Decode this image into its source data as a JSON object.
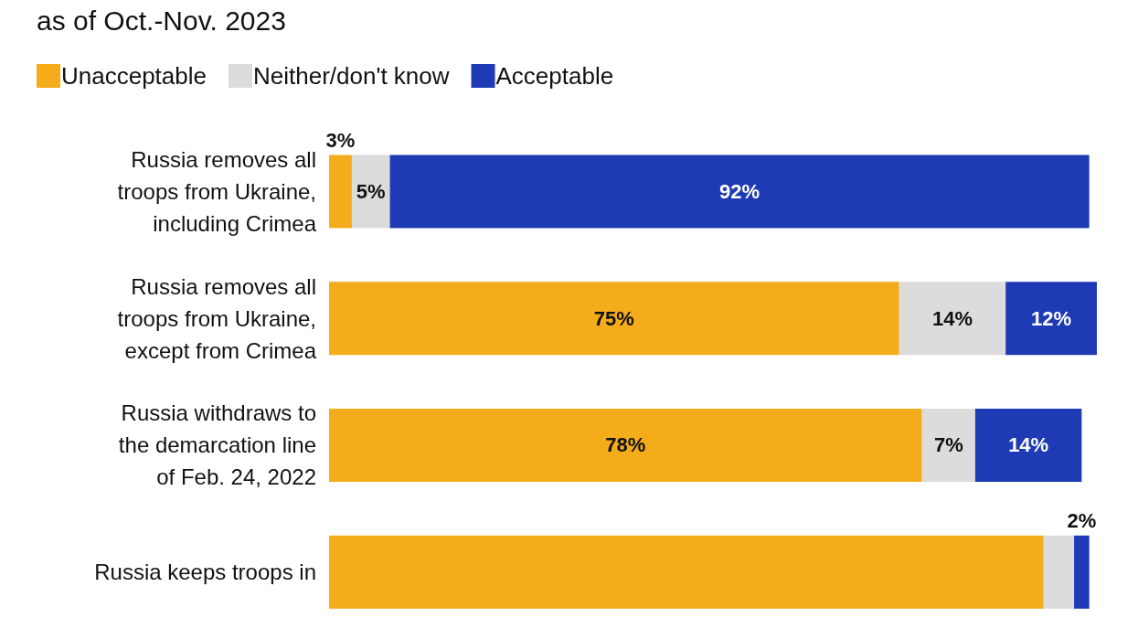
{
  "chart_data": {
    "type": "bar",
    "orientation": "horizontal",
    "stacked": true,
    "title": "as of Oct.-Nov. 2023",
    "legend": "top left",
    "categories": [
      "Russia removes all troops from Ukraine, including Crimea",
      "Russia removes all troops from Ukraine, except from Crimea",
      "Russia withdraws to the demarcation line of Feb. 24, 2022",
      "Russia keeps troops in"
    ],
    "series": [
      {
        "name": "Unacceptable",
        "color": "#f5ac1b",
        "values": [
          3,
          75,
          78,
          94
        ],
        "value_labels": [
          "3%",
          "75%",
          "78%",
          null
        ]
      },
      {
        "name": "Neither/don't know",
        "color": "#dcdcdc",
        "values": [
          5,
          14,
          7,
          4
        ],
        "value_labels": [
          "5%",
          "14%",
          "7%",
          null
        ]
      },
      {
        "name": "Acceptable",
        "color": "#1e3bb5",
        "values": [
          92,
          12,
          14,
          2
        ],
        "value_labels": [
          "92%",
          "12%",
          "14%",
          "2%"
        ]
      }
    ]
  }
}
